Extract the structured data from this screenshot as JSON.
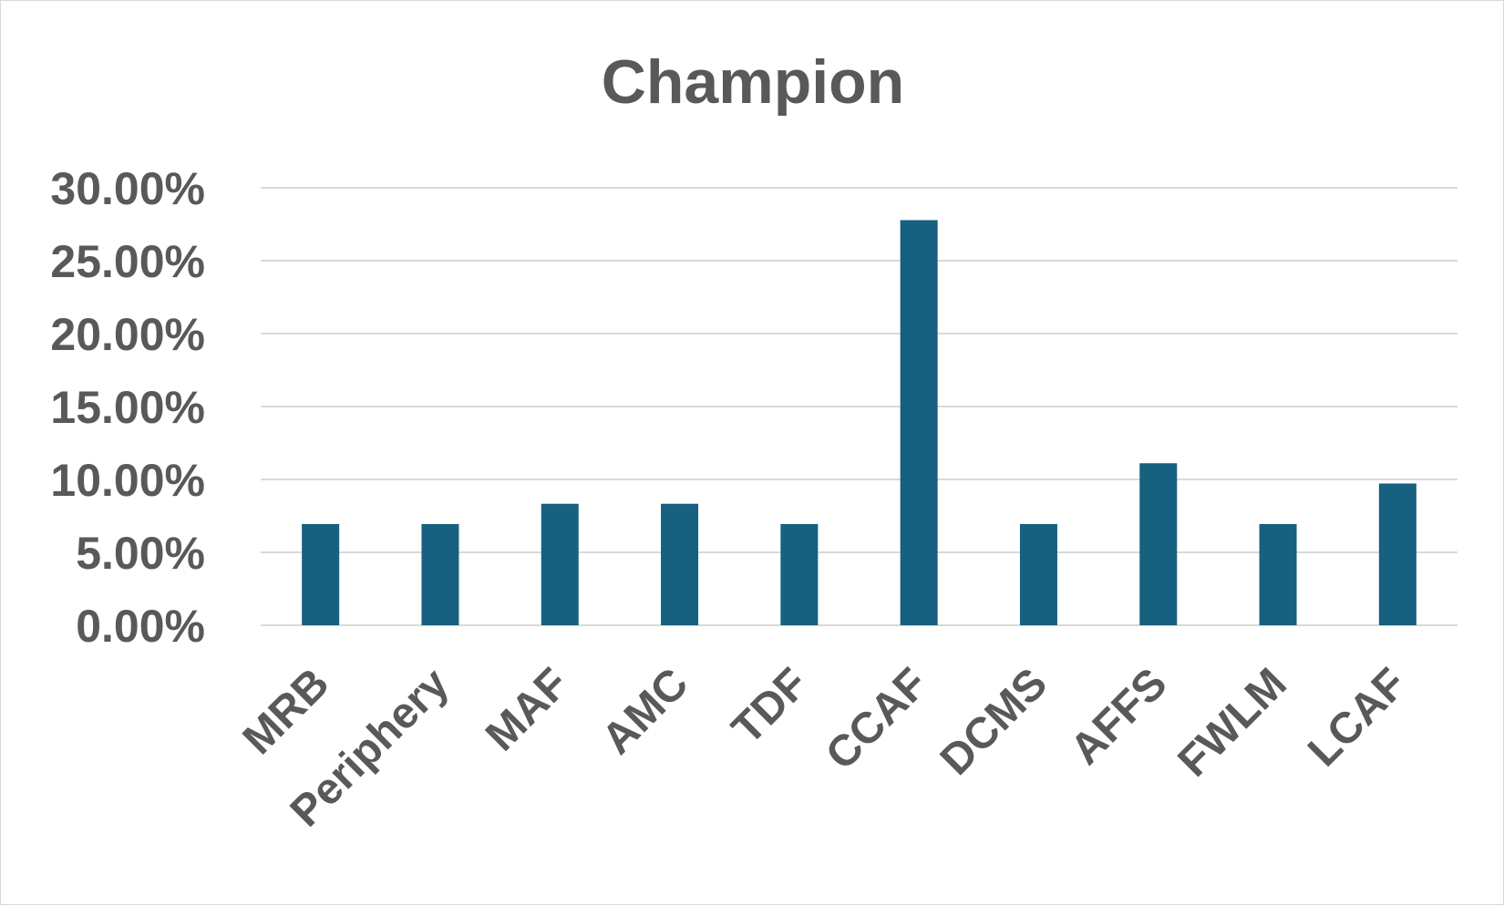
{
  "chart_data": {
    "type": "bar",
    "title": "Champion",
    "xlabel": "",
    "ylabel": "",
    "categories": [
      "MRB",
      "Periphery",
      "MAF",
      "AMC",
      "TDF",
      "CCAF",
      "DCMS",
      "AFFS",
      "FWLM",
      "LCAF"
    ],
    "values": [
      6.94,
      6.94,
      8.33,
      8.33,
      6.94,
      27.78,
      6.94,
      11.11,
      6.94,
      9.72
    ],
    "value_format": "percent_2dp",
    "ylim": [
      0,
      30
    ],
    "yticks": [
      0,
      5,
      10,
      15,
      20,
      25,
      30
    ],
    "ytick_labels": [
      "0.00%",
      "5.00%",
      "10.00%",
      "15.00%",
      "20.00%",
      "25.00%",
      "30.00%"
    ],
    "grid": true,
    "legend": "none",
    "colors": {
      "bar": "#17607f",
      "grid": "#d9d9d9",
      "text": "#595959"
    }
  }
}
